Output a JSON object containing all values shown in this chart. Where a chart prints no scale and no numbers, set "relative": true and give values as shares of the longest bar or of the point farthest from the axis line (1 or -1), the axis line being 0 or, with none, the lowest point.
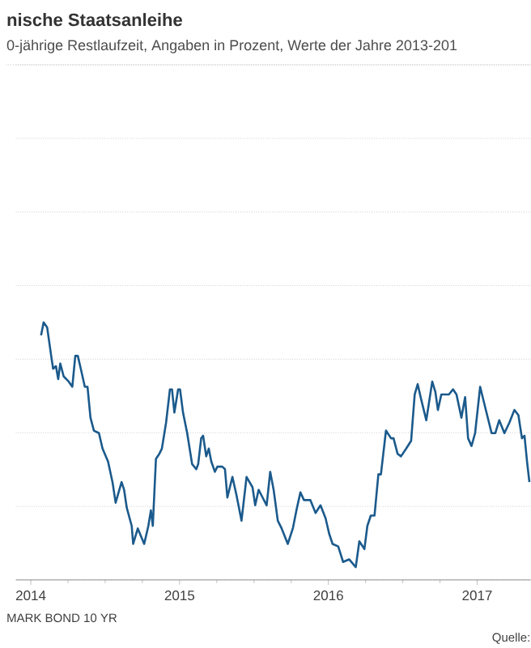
{
  "chart_data": {
    "type": "line",
    "title": "nische Staatsanleihe",
    "subtitle": "0-jährige Restlaufzeit, Angaben in Prozent, Werte der Jahre 2013-201",
    "relative": true,
    "grid": "y",
    "xlim": [
      2013.9,
      2017.36
    ],
    "xticks": [
      2014,
      2015,
      2016,
      2017
    ],
    "annotations": [
      "MARK BOND 10 YR",
      "Quelle:"
    ],
    "series": [
      {
        "color": "#1b5a8c",
        "x": [
          2014.069,
          2014.086,
          2014.11,
          2014.137,
          2014.15,
          2014.169,
          2014.184,
          2014.198,
          2014.221,
          2014.255,
          2014.279,
          2014.299,
          2014.316,
          2014.34,
          2014.363,
          2014.381,
          2014.401,
          2014.424,
          2014.458,
          2014.482,
          2014.519,
          2014.549,
          2014.57,
          2014.61,
          2014.627,
          2014.645,
          2014.678,
          2014.688,
          2014.719,
          2014.762,
          2014.79,
          2014.807,
          2014.82,
          2014.841,
          2014.864,
          2014.881,
          2014.909,
          2014.935,
          2014.949,
          2014.965,
          2014.99,
          2015.003,
          2015.023,
          2015.051,
          2015.084,
          2015.112,
          2015.125,
          2015.145,
          2015.158,
          2015.179,
          2015.196,
          2015.213,
          2015.237,
          2015.254,
          2015.287,
          2015.305,
          2015.321,
          2015.355,
          2015.382,
          2015.416,
          2015.45,
          2015.49,
          2015.508,
          2015.531,
          2015.558,
          2015.585,
          2015.609,
          2015.632,
          2015.66,
          2015.686,
          2015.727,
          2015.761,
          2015.785,
          2015.812,
          2015.836,
          2015.879,
          2015.914,
          2015.947,
          2015.981,
          2016.005,
          2016.028,
          2016.066,
          2016.099,
          2016.14,
          2016.184,
          2016.208,
          2016.242,
          2016.262,
          2016.285,
          2016.31,
          2016.336,
          2016.353,
          2016.387,
          2016.421,
          2016.438,
          2016.465,
          2016.488,
          2016.523,
          2016.556,
          2016.58,
          2016.6,
          2016.624,
          2016.658,
          2016.698,
          2016.719,
          2016.736,
          2016.759,
          2016.81,
          2016.838,
          2016.861,
          2016.894,
          2016.919,
          2016.939,
          2016.962,
          2016.986,
          2017.02,
          2017.054,
          2017.097,
          2017.122,
          2017.148,
          2017.183,
          2017.216,
          2017.25,
          2017.277,
          2017.301,
          2017.318,
          2017.335,
          2017.351
        ],
        "values": [
          0.95,
          1.0,
          0.98,
          0.87,
          0.82,
          0.83,
          0.78,
          0.84,
          0.79,
          0.77,
          0.75,
          0.87,
          0.87,
          0.81,
          0.75,
          0.75,
          0.63,
          0.58,
          0.57,
          0.51,
          0.46,
          0.38,
          0.3,
          0.38,
          0.35,
          0.28,
          0.21,
          0.14,
          0.2,
          0.14,
          0.21,
          0.27,
          0.21,
          0.47,
          0.49,
          0.51,
          0.61,
          0.74,
          0.74,
          0.65,
          0.74,
          0.74,
          0.65,
          0.57,
          0.45,
          0.43,
          0.45,
          0.55,
          0.56,
          0.48,
          0.51,
          0.46,
          0.42,
          0.44,
          0.44,
          0.43,
          0.32,
          0.4,
          0.33,
          0.23,
          0.4,
          0.36,
          0.29,
          0.35,
          0.32,
          0.29,
          0.42,
          0.35,
          0.23,
          0.2,
          0.14,
          0.2,
          0.27,
          0.34,
          0.31,
          0.31,
          0.26,
          0.29,
          0.24,
          0.18,
          0.14,
          0.13,
          0.07,
          0.08,
          0.05,
          0.15,
          0.12,
          0.21,
          0.25,
          0.25,
          0.41,
          0.41,
          0.58,
          0.55,
          0.55,
          0.49,
          0.48,
          0.51,
          0.54,
          0.72,
          0.76,
          0.7,
          0.62,
          0.77,
          0.73,
          0.66,
          0.72,
          0.72,
          0.74,
          0.72,
          0.63,
          0.71,
          0.55,
          0.52,
          0.57,
          0.75,
          0.67,
          0.57,
          0.57,
          0.62,
          0.57,
          0.61,
          0.66,
          0.64,
          0.55,
          0.56,
          0.46,
          0.38
        ]
      }
    ]
  }
}
